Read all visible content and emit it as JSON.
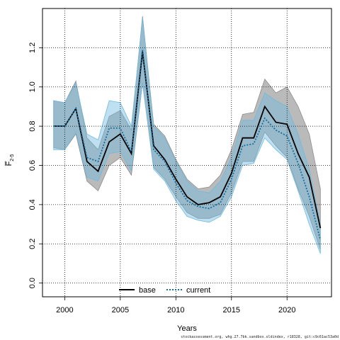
{
  "chart_data": {
    "type": "line",
    "title": "",
    "xlabel": "Years",
    "ylabel": "F̅",
    "ylabel_sub": "2-5",
    "xlim": [
      1998,
      2024
    ],
    "ylim": [
      -0.07,
      1.4
    ],
    "x_ticks": [
      2000,
      2005,
      2010,
      2015,
      2020
    ],
    "y_ticks": [
      0.0,
      0.2,
      0.4,
      0.6,
      0.8,
      1.0,
      1.2
    ],
    "y_tick_labels": [
      "0.0",
      "0.2",
      "0.4",
      "0.6",
      "0.8",
      "1.0",
      "1.2"
    ],
    "grid": true,
    "legend_position": "bottom-center",
    "x": [
      1999,
      2000,
      2001,
      2002,
      2003,
      2004,
      2005,
      2006,
      2007,
      2008,
      2009,
      2010,
      2011,
      2012,
      2013,
      2014,
      2015,
      2016,
      2017,
      2018,
      2019,
      2020,
      2021,
      2022,
      2023
    ],
    "series": [
      {
        "name": "base",
        "color": "#000000",
        "band_color": "#8c8c8c",
        "style": "solid",
        "values": [
          0.8,
          0.8,
          0.89,
          0.62,
          0.57,
          0.72,
          0.76,
          0.66,
          1.18,
          0.7,
          0.63,
          0.53,
          0.44,
          0.4,
          0.41,
          0.44,
          0.56,
          0.74,
          0.74,
          0.9,
          0.82,
          0.81,
          0.66,
          0.54,
          0.28
        ],
        "lower": [
          0.69,
          0.68,
          0.76,
          0.52,
          0.47,
          0.6,
          0.64,
          0.55,
          1.02,
          0.59,
          0.53,
          0.44,
          0.36,
          0.33,
          0.33,
          0.35,
          0.46,
          0.62,
          0.62,
          0.77,
          0.7,
          0.64,
          0.48,
          0.34,
          0.17
        ],
        "upper": [
          0.93,
          0.92,
          1.03,
          0.74,
          0.68,
          0.85,
          0.88,
          0.78,
          1.36,
          0.81,
          0.75,
          0.63,
          0.53,
          0.48,
          0.49,
          0.55,
          0.68,
          0.86,
          0.87,
          1.04,
          0.97,
          1.0,
          0.9,
          0.76,
          0.48
        ]
      },
      {
        "name": "current",
        "color": "#1a6e9e",
        "band_color": "#6fbbe0",
        "style": "dotted",
        "values": [
          0.8,
          0.8,
          0.89,
          0.64,
          0.62,
          0.79,
          0.79,
          0.67,
          1.19,
          0.68,
          0.62,
          0.51,
          0.42,
          0.39,
          0.38,
          0.41,
          0.53,
          0.7,
          0.71,
          0.84,
          0.78,
          0.75,
          0.61,
          0.44,
          0.22
        ],
        "lower": [
          0.68,
          0.68,
          0.77,
          0.54,
          0.52,
          0.66,
          0.67,
          0.57,
          1.02,
          0.58,
          0.52,
          0.42,
          0.34,
          0.32,
          0.31,
          0.34,
          0.44,
          0.6,
          0.61,
          0.74,
          0.68,
          0.63,
          0.47,
          0.3,
          0.15
        ],
        "upper": [
          0.93,
          0.92,
          1.02,
          0.76,
          0.73,
          0.93,
          0.92,
          0.8,
          1.35,
          0.8,
          0.74,
          0.62,
          0.52,
          0.47,
          0.46,
          0.52,
          0.64,
          0.83,
          0.83,
          0.97,
          0.93,
          0.9,
          0.76,
          0.58,
          0.3
        ]
      }
    ]
  },
  "footer_text": "stockassessment.org, whg.27.7bk.sandbox.oldindex, r18328, git:c9c61ac53a0d"
}
